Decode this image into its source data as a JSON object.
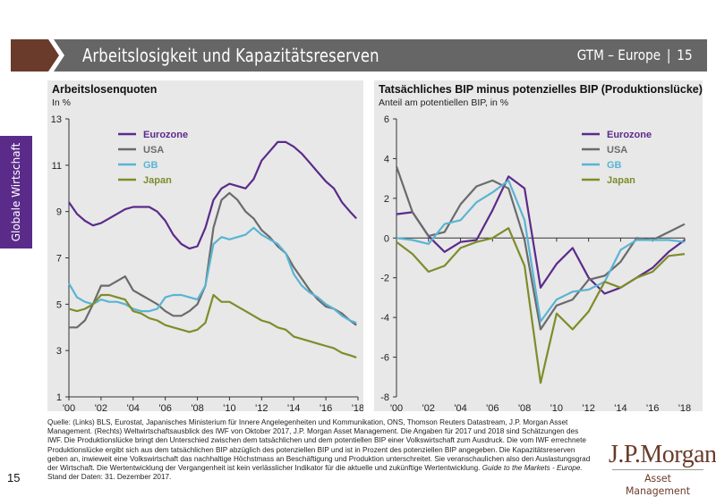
{
  "header": {
    "title": "Arbeitslosigkeit und Kapazitätsreserven",
    "section": "GTM – Europe",
    "separator": "|",
    "page": "15"
  },
  "sidebar": {
    "label": "Globale Wirtschaft"
  },
  "colors": {
    "eurozone": "#5b2b8a",
    "usa": "#6b6b6b",
    "gb": "#5ab4d3",
    "japan": "#7f8c2a",
    "brand_brown": "#6a3b2a",
    "header_gray": "#666666"
  },
  "chart_data": [
    {
      "type": "line",
      "title": "Arbeitslosenquoten",
      "subtitle": "In %",
      "xlabel": "",
      "ylabel": "In %",
      "ylim": [
        1,
        13
      ],
      "xlim": [
        2000,
        2018
      ],
      "yticks": [
        1,
        3,
        5,
        7,
        9,
        11,
        13
      ],
      "xticks": [
        "'00",
        "'02",
        "'04",
        "'06",
        "'08",
        "'10",
        "'12",
        "'14",
        "'16",
        "'18"
      ],
      "legend": [
        "Eurozone",
        "USA",
        "GB",
        "Japan"
      ],
      "legend_position": "top-left",
      "grid": false,
      "x": [
        2000,
        2000.5,
        2001,
        2001.5,
        2002,
        2002.5,
        2003,
        2003.5,
        2004,
        2004.5,
        2005,
        2005.5,
        2006,
        2006.5,
        2007,
        2007.5,
        2008,
        2008.5,
        2009,
        2009.5,
        2010,
        2010.5,
        2011,
        2011.5,
        2012,
        2012.5,
        2013,
        2013.5,
        2014,
        2014.5,
        2015,
        2015.5,
        2016,
        2016.5,
        2017,
        2017.5,
        2017.9
      ],
      "series": [
        {
          "name": "Eurozone",
          "values": [
            9.4,
            8.9,
            8.6,
            8.4,
            8.5,
            8.7,
            8.9,
            9.1,
            9.2,
            9.2,
            9.2,
            9.0,
            8.6,
            8.0,
            7.6,
            7.4,
            7.5,
            8.3,
            9.5,
            10.0,
            10.2,
            10.1,
            10.0,
            10.4,
            11.2,
            11.6,
            12.0,
            12.0,
            11.8,
            11.5,
            11.1,
            10.7,
            10.3,
            10.0,
            9.4,
            9.0,
            8.7
          ]
        },
        {
          "name": "USA",
          "values": [
            4.0,
            4.0,
            4.3,
            5.0,
            5.8,
            5.8,
            6.0,
            6.2,
            5.6,
            5.4,
            5.2,
            5.0,
            4.7,
            4.5,
            4.5,
            4.7,
            5.0,
            5.8,
            8.3,
            9.5,
            9.8,
            9.5,
            9.0,
            8.7,
            8.2,
            7.9,
            7.5,
            7.2,
            6.6,
            6.1,
            5.6,
            5.2,
            4.9,
            4.8,
            4.6,
            4.3,
            4.1
          ]
        },
        {
          "name": "GB",
          "values": [
            5.9,
            5.3,
            5.1,
            5.0,
            5.2,
            5.1,
            5.1,
            5.0,
            4.8,
            4.7,
            4.7,
            4.8,
            5.3,
            5.4,
            5.4,
            5.3,
            5.2,
            5.8,
            7.6,
            7.9,
            7.8,
            7.9,
            8.0,
            8.3,
            8.0,
            7.8,
            7.6,
            7.2,
            6.3,
            5.8,
            5.5,
            5.3,
            5.0,
            4.8,
            4.5,
            4.3,
            4.2
          ]
        },
        {
          "name": "Japan",
          "values": [
            4.8,
            4.7,
            4.8,
            5.0,
            5.4,
            5.4,
            5.3,
            5.2,
            4.7,
            4.6,
            4.4,
            4.3,
            4.1,
            4.0,
            3.9,
            3.8,
            3.9,
            4.2,
            5.4,
            5.1,
            5.1,
            4.9,
            4.7,
            4.5,
            4.3,
            4.2,
            4.0,
            3.9,
            3.6,
            3.5,
            3.4,
            3.3,
            3.2,
            3.1,
            2.9,
            2.8,
            2.7
          ]
        }
      ]
    },
    {
      "type": "line",
      "title": "Tatsächliches BIP minus potenzielles BIP (Produktionslücke)",
      "subtitle": "Anteil am potentiellen BIP, in %",
      "xlabel": "",
      "ylabel": "Anteil am potentiellen BIP, in %",
      "ylim": [
        -8,
        6
      ],
      "xlim": [
        2000,
        2018
      ],
      "yticks": [
        -8,
        -6,
        -4,
        -2,
        0,
        2,
        4,
        6
      ],
      "xticks": [
        "'00",
        "'02",
        "'04",
        "'06",
        "'08",
        "'10",
        "'12",
        "'14",
        "'16",
        "'18"
      ],
      "legend": [
        "Eurozone",
        "USA",
        "GB",
        "Japan"
      ],
      "legend_position": "top-right",
      "grid": false,
      "x": [
        2000,
        2001,
        2002,
        2003,
        2004,
        2005,
        2006,
        2007,
        2008,
        2009,
        2010,
        2011,
        2012,
        2013,
        2014,
        2015,
        2016,
        2017,
        2018
      ],
      "series": [
        {
          "name": "Eurozone",
          "values": [
            1.2,
            1.3,
            0.1,
            -0.7,
            -0.2,
            -0.1,
            1.4,
            3.1,
            2.5,
            -2.5,
            -1.3,
            -0.5,
            -2.0,
            -2.8,
            -2.5,
            -2.0,
            -1.5,
            -0.7,
            -0.1
          ]
        },
        {
          "name": "USA",
          "values": [
            3.6,
            1.3,
            0.1,
            0.3,
            1.7,
            2.6,
            2.9,
            2.5,
            -0.1,
            -4.6,
            -3.4,
            -3.1,
            -2.1,
            -1.9,
            -1.2,
            0.0,
            -0.1,
            0.3,
            0.7
          ]
        },
        {
          "name": "GB",
          "values": [
            0.0,
            -0.1,
            -0.3,
            0.7,
            0.9,
            1.8,
            2.3,
            2.9,
            0.9,
            -4.2,
            -3.1,
            -2.7,
            -2.6,
            -2.2,
            -0.6,
            -0.1,
            -0.1,
            -0.1,
            -0.2
          ]
        },
        {
          "name": "Japan",
          "values": [
            -0.2,
            -0.8,
            -1.7,
            -1.4,
            -0.5,
            -0.2,
            0.0,
            0.5,
            -1.4,
            -7.3,
            -3.8,
            -4.6,
            -3.7,
            -2.2,
            -2.5,
            -2.0,
            -1.7,
            -0.9,
            -0.8
          ]
        }
      ]
    }
  ],
  "footer": {
    "source_lines": [
      "Quelle: (Links) BLS, Eurostat, Japanisches Ministerium für Innere Angelegenheiten und Kommunikation, ONS, Thomson Reuters Datastream, J.P. Morgan Asset",
      "Management. (Rechts) Weltwirtschaftsausblick des IWF von Oktober 2017, J.P. Morgan Asset Management. Die Angaben für 2017 und 2018 sind Schätzungen des",
      "IWF. Die Produktionslücke bringt den Unterschied zwischen dem tatsächlichen und dem potentiellen BIP einer Volkswirtschaft zum Ausdruck. Die vom IWF errechnete",
      "Produktionslücke ergibt sich aus dem tatsächlichen BIP abzüglich des potenziellen BIP und ist in Prozent des potenziellen BIP angegeben. Die Kapazitätsreserven",
      "geben an, inwieweit eine Volkswirtschaft das nachhaltige Höchstmass an Beschäftigung und Produktion unterschreitet. Sie veranschaulichen also den Auslastungsgrad",
      "der Wirtschaft. Die Wertentwicklung der Vergangenheit ist kein verlässlicher Indikator für die aktuelle und zukünftige Wertentwicklung."
    ],
    "guide_italic": "Guide to the Markets - Europe.",
    "date_line": "Stand der Daten: 31. Dezember 2017.",
    "page_number": "15"
  },
  "logo": {
    "line1": "J.P.Morgan",
    "line2": "Asset Management"
  }
}
